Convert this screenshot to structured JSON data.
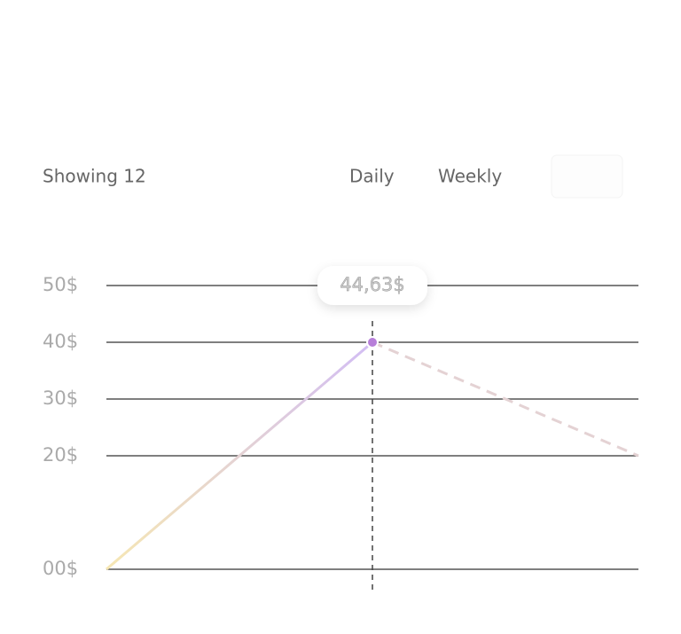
{
  "header": {
    "title": "Showing 12",
    "tabs": [
      "Daily",
      "Weekly"
    ]
  },
  "chart_data": {
    "type": "line",
    "categories": [
      null,
      null,
      null
    ],
    "series": [
      {
        "values": [
          0,
          40,
          20
        ],
        "color": "#d2bdf4",
        "start_color": "#f6e7b3",
        "point_color": "#b77fd9"
      }
    ],
    "annotation": "44,63$",
    "ylim": [
      0,
      50
    ],
    "yticks": [
      {
        "value": 0,
        "label": "00$"
      },
      {
        "value": 20,
        "label": "20$"
      },
      {
        "value": 30,
        "label": "30$"
      },
      {
        "value": 40,
        "label": "40$"
      },
      {
        "value": 50,
        "label": "50$"
      }
    ],
    "grid": true
  }
}
